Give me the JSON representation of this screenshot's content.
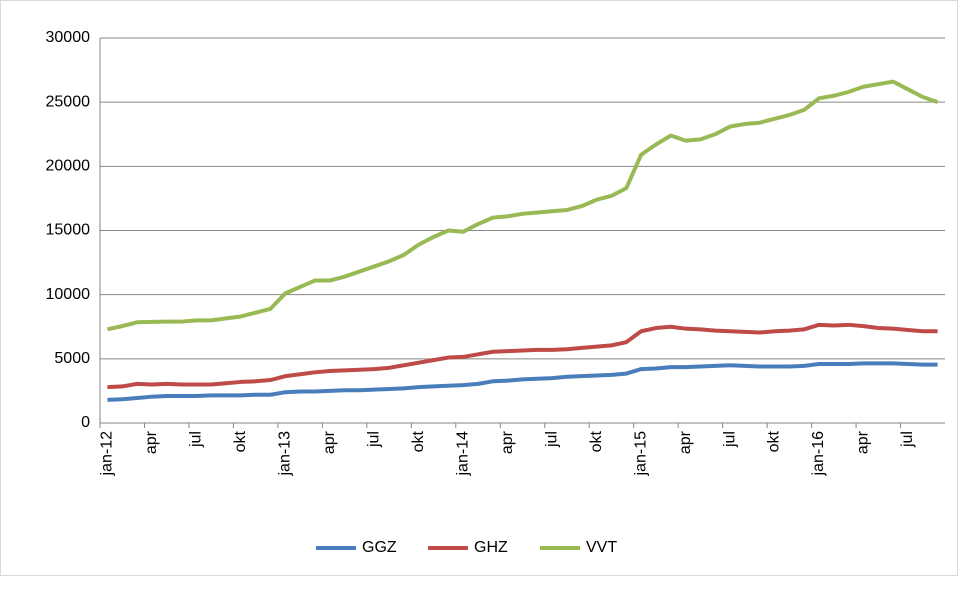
{
  "chart_data": {
    "type": "line",
    "categories": [
      "jan-12",
      null,
      null,
      "apr",
      null,
      null,
      "jul",
      null,
      null,
      "okt",
      null,
      null,
      "jan-13",
      null,
      null,
      "apr",
      null,
      null,
      "jul",
      null,
      null,
      "okt",
      null,
      null,
      "jan-14",
      null,
      null,
      "apr",
      null,
      null,
      "jul",
      null,
      null,
      "okt",
      null,
      null,
      "jan-15",
      null,
      null,
      "apr",
      null,
      null,
      "jul",
      null,
      null,
      "okt",
      null,
      null,
      "jan-16",
      null,
      null,
      "apr",
      null,
      null,
      "jul",
      null,
      null
    ],
    "series": [
      {
        "name": "GGZ",
        "color": "#4a7ebb",
        "values": [
          1800,
          1850,
          1950,
          2050,
          2100,
          2100,
          2100,
          2150,
          2150,
          2150,
          2200,
          2200,
          2400,
          2450,
          2450,
          2500,
          2550,
          2550,
          2600,
          2650,
          2700,
          2800,
          2850,
          2900,
          2950,
          3050,
          3250,
          3300,
          3400,
          3450,
          3500,
          3600,
          3650,
          3700,
          3750,
          3850,
          4200,
          4250,
          4350,
          4350,
          4400,
          4450,
          4500,
          4450,
          4400,
          4400,
          4400,
          4450,
          4600,
          4600,
          4600,
          4650,
          4650,
          4650,
          4600,
          4550,
          4550
        ]
      },
      {
        "name": "GHZ",
        "color": "#be4b48",
        "values": [
          2800,
          2850,
          3050,
          3000,
          3050,
          3000,
          3000,
          3000,
          3100,
          3200,
          3250,
          3350,
          3650,
          3800,
          3950,
          4050,
          4100,
          4150,
          4200,
          4300,
          4500,
          4700,
          4900,
          5100,
          5150,
          5350,
          5550,
          5600,
          5650,
          5700,
          5700,
          5750,
          5850,
          5950,
          6050,
          6300,
          7150,
          7400,
          7500,
          7350,
          7300,
          7200,
          7150,
          7100,
          7050,
          7150,
          7200,
          7300,
          7650,
          7600,
          7650,
          7550,
          7400,
          7350,
          7250,
          7150,
          7150
        ]
      },
      {
        "name": "VVT",
        "color": "#98b954",
        "values": [
          7300,
          7550,
          7850,
          7880,
          7900,
          7900,
          8000,
          8000,
          8150,
          8300,
          8600,
          8900,
          10100,
          10600,
          11100,
          11100,
          11400,
          11800,
          12200,
          12600,
          13100,
          13900,
          14500,
          15000,
          14900,
          15500,
          16000,
          16100,
          16300,
          16400,
          16500,
          16600,
          16900,
          17400,
          17700,
          18300,
          20900,
          21700,
          22400,
          22000,
          22100,
          22500,
          23100,
          23300,
          23400,
          23700,
          24000,
          24400,
          25300,
          25500,
          25800,
          26200,
          26400,
          26600,
          26000,
          25400,
          25000
        ]
      }
    ],
    "ylim": [
      0,
      30000
    ],
    "yticks": [
      0,
      5000,
      10000,
      15000,
      20000,
      25000,
      30000
    ],
    "grid": true,
    "legend": "bottom"
  }
}
